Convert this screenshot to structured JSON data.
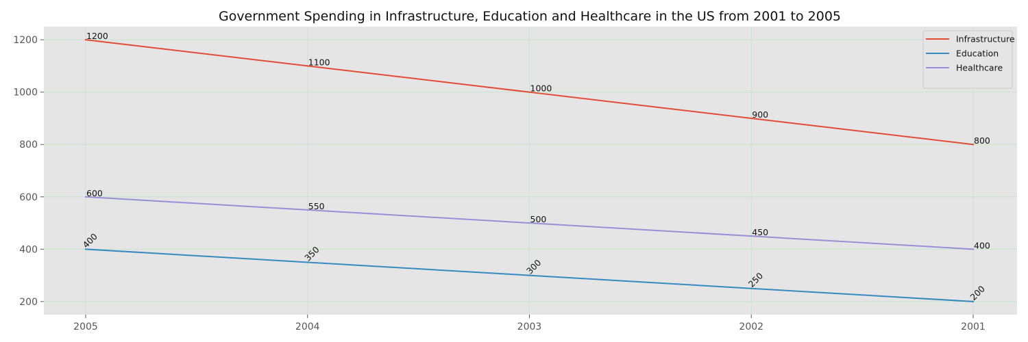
{
  "chart_data": {
    "type": "line",
    "title": "Government Spending in Infrastructure, Education and Healthcare in the US from 2001 to 2005",
    "xlabel": "",
    "ylabel": "",
    "categories": [
      "2005",
      "2004",
      "2003",
      "2002",
      "2001"
    ],
    "ylim": [
      150,
      1250
    ],
    "yticks": [
      200,
      400,
      600,
      800,
      1000,
      1200
    ],
    "grid": true,
    "legend_position": "top-right",
    "series": [
      {
        "name": "Infrastructure",
        "color": "#E24A33",
        "values": [
          1200,
          1100,
          1000,
          900,
          800
        ],
        "label_rotation": 0
      },
      {
        "name": "Education",
        "color": "#348ABD",
        "values": [
          400,
          350,
          300,
          250,
          200
        ],
        "label_rotation": -45
      },
      {
        "name": "Healthcare",
        "color": "#988ED5",
        "values": [
          600,
          550,
          500,
          450,
          400
        ],
        "label_rotation": 0
      }
    ]
  }
}
